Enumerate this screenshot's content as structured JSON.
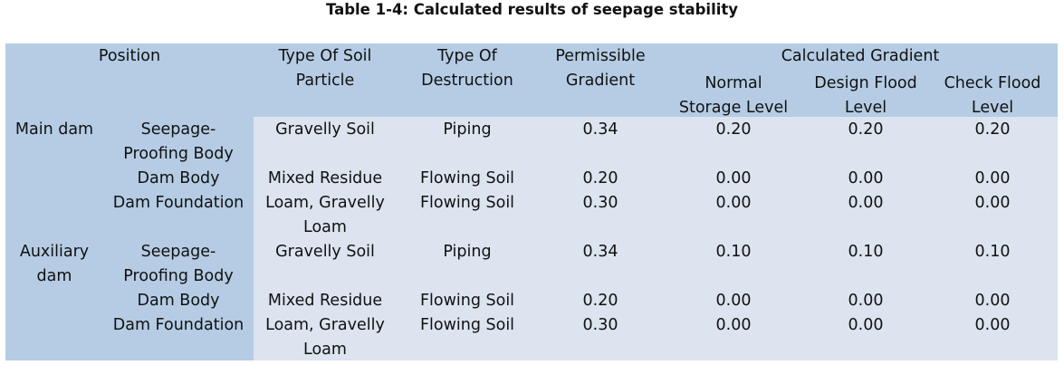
{
  "caption": "Table 1-4: Calculated results of seepage stability",
  "headers": {
    "position": "Position",
    "soil_particle_1": "Type Of Soil",
    "soil_particle_2": "Particle",
    "destruction_1": "Type Of",
    "destruction_2": "Destruction",
    "permissible_1": "Permissible",
    "permissible_2": "Gradient",
    "calculated": "Calculated Gradient",
    "normal_1": "Normal",
    "normal_2": "Storage Level",
    "design_1": "Design Flood",
    "design_2": "Level",
    "check_1": "Check Flood",
    "check_2": "Level"
  },
  "groups": [
    {
      "name_lines": [
        "Main dam"
      ],
      "rows": [
        {
          "position_lines": [
            "Seepage-",
            "Proofing Body"
          ],
          "soil_lines": [
            "Gravelly Soil"
          ],
          "destruction": "Piping",
          "permissible": "0.34",
          "normal": "0.20",
          "design": "0.20",
          "check": "0.20"
        },
        {
          "position_lines": [
            "Dam Body"
          ],
          "soil_lines": [
            "Mixed Residue"
          ],
          "destruction": "Flowing Soil",
          "permissible": "0.20",
          "normal": "0.00",
          "design": "0.00",
          "check": "0.00"
        },
        {
          "position_lines": [
            "Dam Foundation"
          ],
          "soil_lines": [
            "Loam, Gravelly",
            "Loam"
          ],
          "destruction": "Flowing Soil",
          "permissible": "0.30",
          "normal": "0.00",
          "design": "0.00",
          "check": "0.00"
        }
      ]
    },
    {
      "name_lines": [
        "Auxiliary",
        "dam"
      ],
      "rows": [
        {
          "position_lines": [
            "Seepage-",
            "Proofing Body"
          ],
          "soil_lines": [
            "Gravelly Soil"
          ],
          "destruction": "Piping",
          "permissible": "0.34",
          "normal": "0.10",
          "design": "0.10",
          "check": "0.10"
        },
        {
          "position_lines": [
            "Dam Body"
          ],
          "soil_lines": [
            "Mixed Residue"
          ],
          "destruction": "Flowing Soil",
          "permissible": "0.20",
          "normal": "0.00",
          "design": "0.00",
          "check": "0.00"
        },
        {
          "position_lines": [
            "Dam Foundation"
          ],
          "soil_lines": [
            "Loam, Gravelly",
            "Loam"
          ],
          "destruction": "Flowing Soil",
          "permissible": "0.30",
          "normal": "0.00",
          "design": "0.00",
          "check": "0.00"
        }
      ]
    }
  ]
}
